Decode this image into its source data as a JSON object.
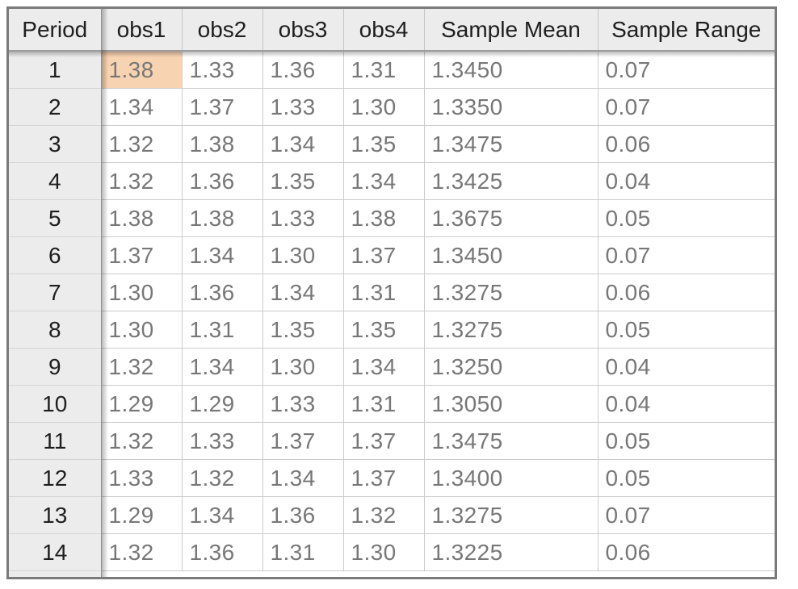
{
  "table": {
    "columns": [
      "Period",
      "obs1",
      "obs2",
      "obs3",
      "obs4",
      "Sample Mean",
      "Sample Range"
    ],
    "rows": [
      {
        "period": "1",
        "obs1": "1.38",
        "obs2": "1.33",
        "obs3": "1.36",
        "obs4": "1.31",
        "mean": "1.3450",
        "range": "0.07"
      },
      {
        "period": "2",
        "obs1": "1.34",
        "obs2": "1.37",
        "obs3": "1.33",
        "obs4": "1.30",
        "mean": "1.3350",
        "range": "0.07"
      },
      {
        "period": "3",
        "obs1": "1.32",
        "obs2": "1.38",
        "obs3": "1.34",
        "obs4": "1.35",
        "mean": "1.3475",
        "range": "0.06"
      },
      {
        "period": "4",
        "obs1": "1.32",
        "obs2": "1.36",
        "obs3": "1.35",
        "obs4": "1.34",
        "mean": "1.3425",
        "range": "0.04"
      },
      {
        "period": "5",
        "obs1": "1.38",
        "obs2": "1.38",
        "obs3": "1.33",
        "obs4": "1.38",
        "mean": "1.3675",
        "range": "0.05"
      },
      {
        "period": "6",
        "obs1": "1.37",
        "obs2": "1.34",
        "obs3": "1.30",
        "obs4": "1.37",
        "mean": "1.3450",
        "range": "0.07"
      },
      {
        "period": "7",
        "obs1": "1.30",
        "obs2": "1.36",
        "obs3": "1.34",
        "obs4": "1.31",
        "mean": "1.3275",
        "range": "0.06"
      },
      {
        "period": "8",
        "obs1": "1.30",
        "obs2": "1.31",
        "obs3": "1.35",
        "obs4": "1.35",
        "mean": "1.3275",
        "range": "0.05"
      },
      {
        "period": "9",
        "obs1": "1.32",
        "obs2": "1.34",
        "obs3": "1.30",
        "obs4": "1.34",
        "mean": "1.3250",
        "range": "0.04"
      },
      {
        "period": "10",
        "obs1": "1.29",
        "obs2": "1.29",
        "obs3": "1.33",
        "obs4": "1.31",
        "mean": "1.3050",
        "range": "0.04"
      },
      {
        "period": "11",
        "obs1": "1.32",
        "obs2": "1.33",
        "obs3": "1.37",
        "obs4": "1.37",
        "mean": "1.3475",
        "range": "0.05"
      },
      {
        "period": "12",
        "obs1": "1.33",
        "obs2": "1.32",
        "obs3": "1.34",
        "obs4": "1.37",
        "mean": "1.3400",
        "range": "0.05"
      },
      {
        "period": "13",
        "obs1": "1.29",
        "obs2": "1.34",
        "obs3": "1.36",
        "obs4": "1.32",
        "mean": "1.3275",
        "range": "0.07"
      },
      {
        "period": "14",
        "obs1": "1.32",
        "obs2": "1.36",
        "obs3": "1.31",
        "obs4": "1.30",
        "mean": "1.3225",
        "range": "0.06"
      }
    ],
    "selected_cell": {
      "period": "1",
      "column": "obs1",
      "value": "1.38"
    }
  },
  "colors": {
    "highlight": "#f8d3b1",
    "header_bg": "#ececec",
    "frozen_column_bg": "#ececec",
    "outer_border": "#7a7a7a",
    "cell_border": "#cccccc",
    "header_text": "#1e1e1e",
    "data_text": "#777777"
  }
}
